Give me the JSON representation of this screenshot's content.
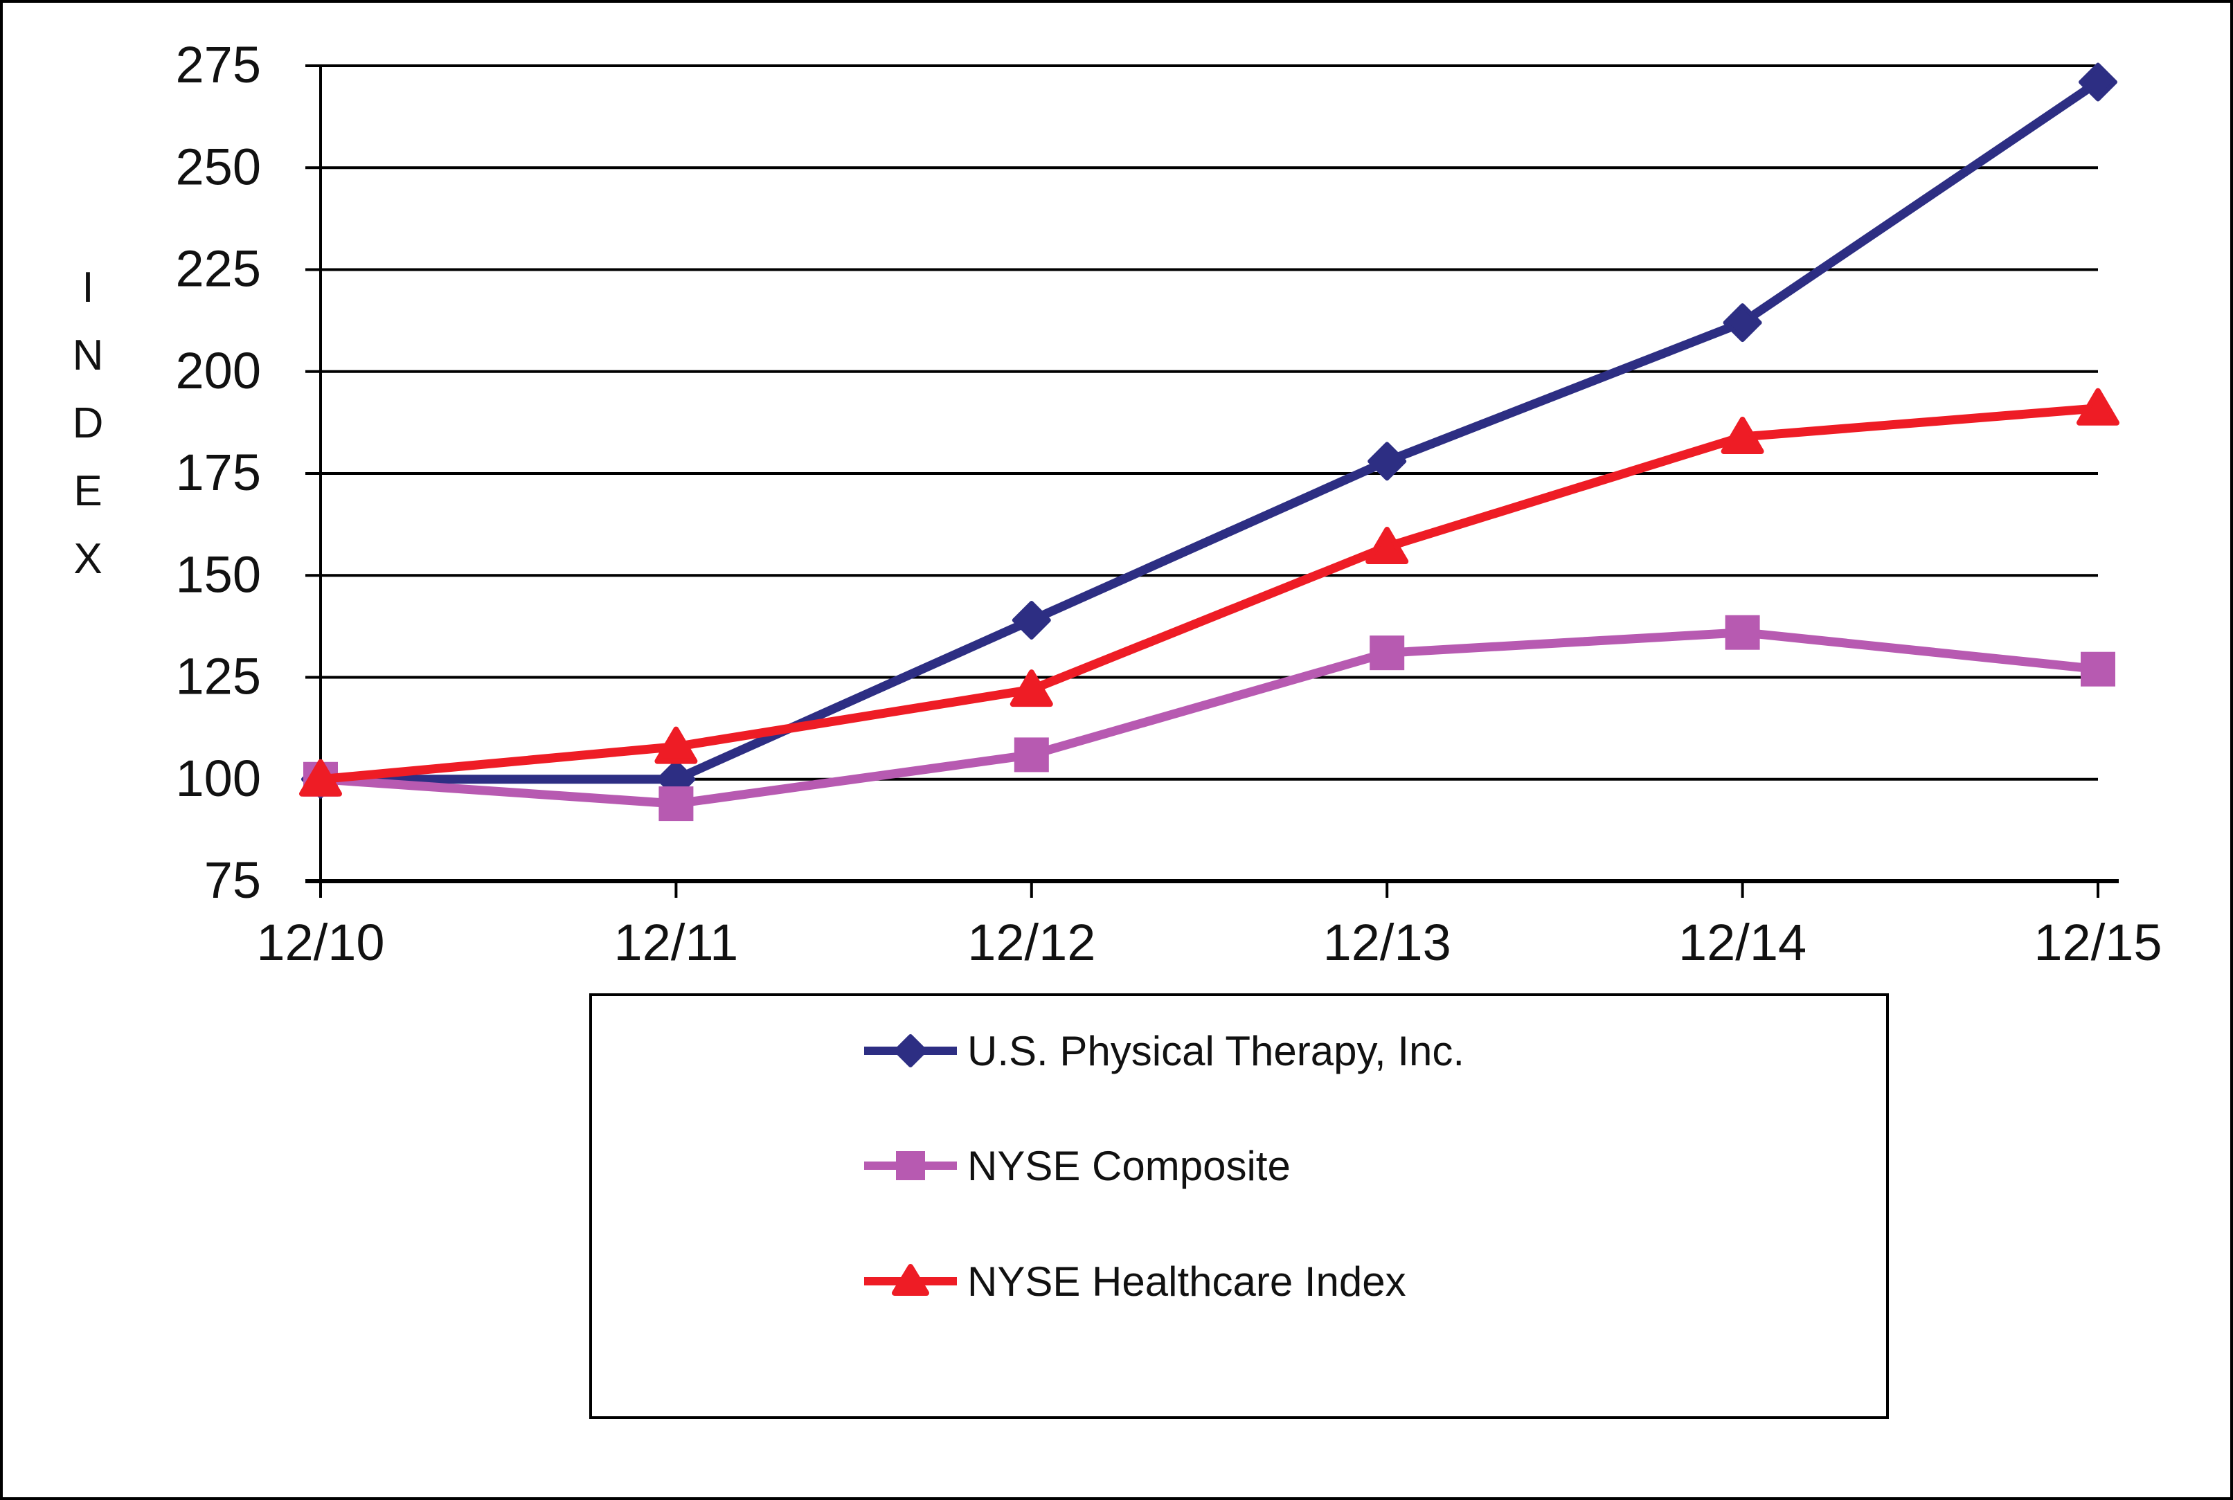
{
  "chart_data": {
    "type": "line",
    "title": "",
    "xlabel": "",
    "ylabel": "INDEX",
    "categories": [
      "12/10",
      "12/11",
      "12/12",
      "12/13",
      "12/14",
      "12/15"
    ],
    "series": [
      {
        "name": "U.S. Physical Therapy, Inc.",
        "color": "#2d2e83",
        "marker": "diamond",
        "values": [
          100,
          100,
          139,
          178,
          212,
          271
        ]
      },
      {
        "name": "NYSE Composite",
        "color": "#b75ab1",
        "marker": "square",
        "values": [
          100,
          94,
          106,
          131,
          136,
          127
        ]
      },
      {
        "name": "NYSE Healthcare Index",
        "color": "#ee1c25",
        "marker": "triangle",
        "values": [
          100,
          108,
          122,
          157,
          184,
          191
        ]
      }
    ],
    "ylim": [
      75,
      275
    ],
    "yticks": [
      275,
      250,
      225,
      200,
      175,
      150,
      125,
      100,
      75
    ],
    "grid": true,
    "legend_position": "bottom-center",
    "axis_color": "#000000",
    "background_color": "#ffffff"
  }
}
